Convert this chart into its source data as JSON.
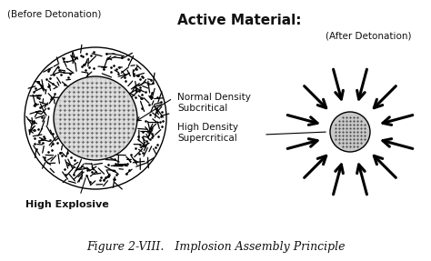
{
  "bg_color": "#ffffff",
  "title": "Figure 2-VIII.   Implosion Assembly Principle",
  "title_fontsize": 9,
  "before_label": "(Before Detonation)",
  "after_label": "(After Detonation)",
  "active_material_label": "Active Material:",
  "normal_density_label": "Normal Density\nSubcritical",
  "high_density_label": "High Density\nSupercritical",
  "high_explosive_label": "High Explosive",
  "text_color": "#111111",
  "num_arrows": 12,
  "fig_width": 4.74,
  "fig_height": 2.87,
  "dpi": 100
}
